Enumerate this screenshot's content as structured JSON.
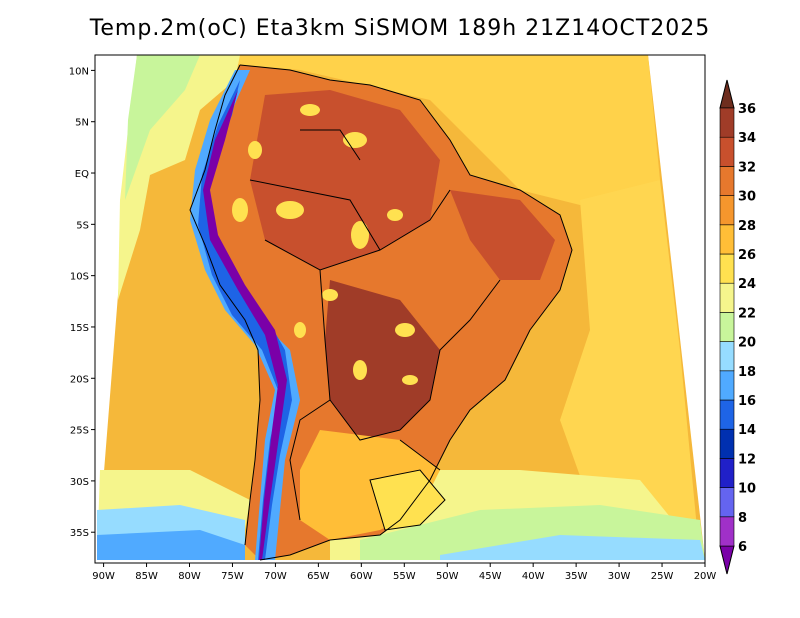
{
  "title": "Temp.2m(oC) Eta3km SiSMOM 189h 21Z14OCT2025",
  "axes": {
    "lat_ticks": [
      {
        "label": "10N",
        "value": 10
      },
      {
        "label": "5N",
        "value": 5
      },
      {
        "label": "EQ",
        "value": 0
      },
      {
        "label": "5S",
        "value": -5
      },
      {
        "label": "10S",
        "value": -10
      },
      {
        "label": "15S",
        "value": -15
      },
      {
        "label": "20S",
        "value": -20
      },
      {
        "label": "25S",
        "value": -25
      },
      {
        "label": "30S",
        "value": -30
      },
      {
        "label": "35S",
        "value": -35
      }
    ],
    "lon_ticks": [
      {
        "label": "90W",
        "value": -90
      },
      {
        "label": "85W",
        "value": -85
      },
      {
        "label": "80W",
        "value": -80
      },
      {
        "label": "75W",
        "value": -75
      },
      {
        "label": "70W",
        "value": -70
      },
      {
        "label": "65W",
        "value": -65
      },
      {
        "label": "60W",
        "value": -60
      },
      {
        "label": "55W",
        "value": -55
      },
      {
        "label": "50W",
        "value": -50
      },
      {
        "label": "45W",
        "value": -45
      },
      {
        "label": "40W",
        "value": -40
      },
      {
        "label": "35W",
        "value": -35
      },
      {
        "label": "30W",
        "value": -30
      },
      {
        "label": "25W",
        "value": -25
      },
      {
        "label": "20W",
        "value": -20
      }
    ],
    "lat_range": [
      -38,
      11.5
    ],
    "lon_range": [
      -91,
      -20
    ]
  },
  "colorbar": {
    "labels": [
      "6",
      "8",
      "10",
      "12",
      "14",
      "16",
      "18",
      "20",
      "22",
      "24",
      "26",
      "28",
      "30",
      "32",
      "34",
      "36"
    ],
    "colors": [
      "#7a00a8",
      "#a030c8",
      "#6464f0",
      "#2020c8",
      "#0030b0",
      "#1e64e6",
      "#50aaff",
      "#96dcff",
      "#c8f59b",
      "#f5f58c",
      "#ffe150",
      "#ffbe37",
      "#f5962d",
      "#e6782d",
      "#c8502d",
      "#a03c28",
      "#6e2d1e"
    ]
  }
}
